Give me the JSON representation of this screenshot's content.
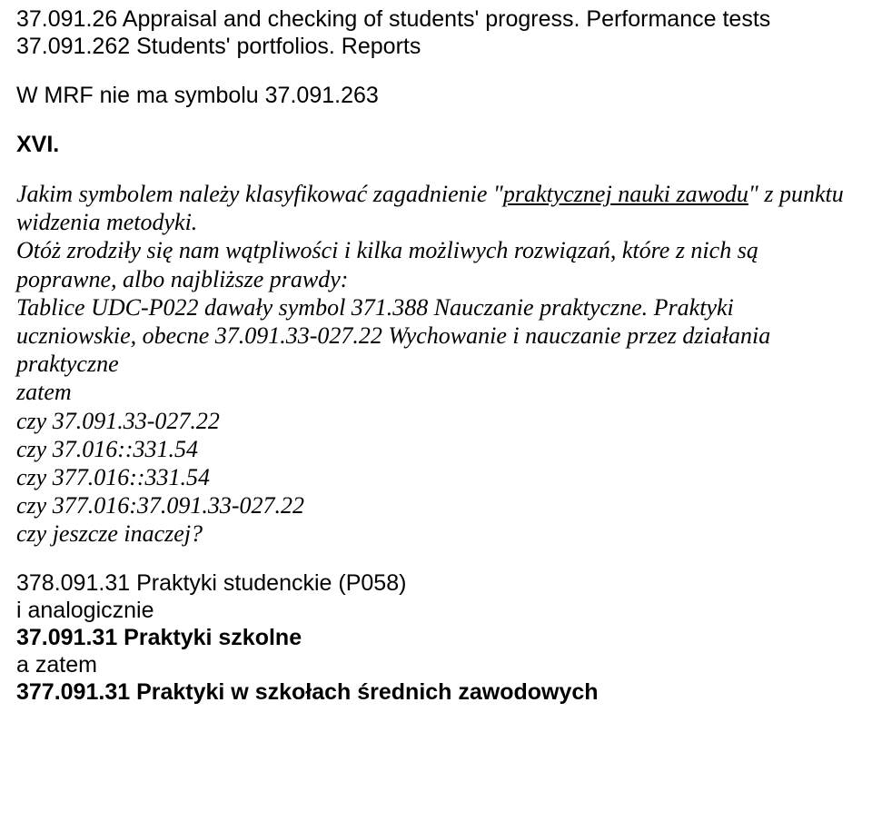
{
  "colors": {
    "text": "#000000",
    "background": "#ffffff"
  },
  "typography": {
    "body_font": "Arial",
    "body_size_pt": 19,
    "italic_font": "Times New Roman",
    "italic_size_pt": 20
  },
  "block1": {
    "l1": "37.091.26 Appraisal and checking of students' progress. Performance tests",
    "l2": "37.091.262 Students' portfolios. Reports"
  },
  "block2": {
    "l1": "W MRF nie ma symbolu 37.091.263"
  },
  "block3": {
    "l1": "XVI."
  },
  "block4": {
    "p1_a": "Jakim symbolem należy klasyfikować zagadnienie \"",
    "p1_u": "praktycznej nauki zawodu",
    "p1_b": "\" z punktu widzenia metodyki.",
    "p2": "Otóż zrodziły się nam wątpliwości i kilka możliwych rozwiązań, które z nich są poprawne, albo najbliższe prawdy:",
    "p3": "Tablice UDC-P022 dawały symbol 371.388 Nauczanie praktyczne. Praktyki uczniowskie, obecne 37.091.33-027.22 Wychowanie i nauczanie przez działania praktyczne",
    "l_zatem": "zatem",
    "l_a": "czy 37.091.33-027.22",
    "l_b": "czy 37.016::331.54",
    "l_c": "czy 377.016::331.54",
    "l_d": "czy 377.016:37.091.33-027.22",
    "l_e": "czy jeszcze inaczej?"
  },
  "block5": {
    "l1": "378.091.31 Praktyki studenckie (P058)",
    "l2": "i analogicznie",
    "l3": "37.091.31 Praktyki szkolne",
    "l4": "a zatem",
    "l5": "377.091.31 Praktyki w szkołach średnich zawodowych"
  }
}
